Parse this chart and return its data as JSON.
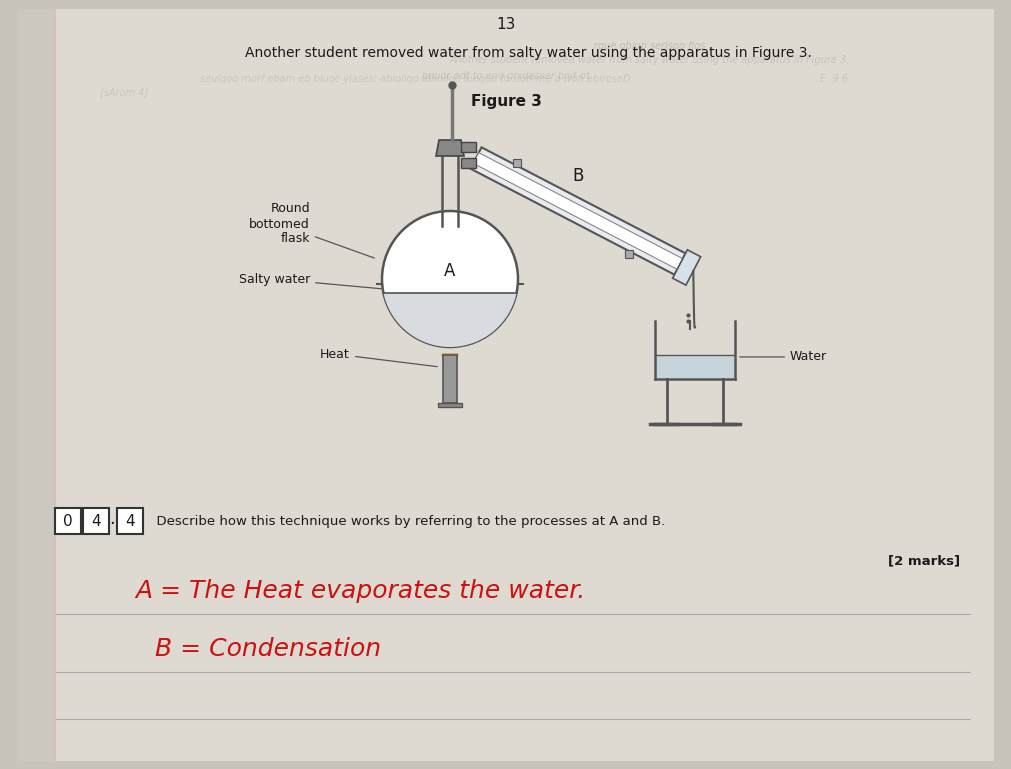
{
  "bg_color": "#c8c4bc",
  "page_color": "#dedad2",
  "page_number": "13",
  "intro_text": "Another student removed water from salty water using the apparatus in Figure 3.",
  "figure_title": "Figure 3",
  "question_text": "Describe how this technique works by referring to the processes at ⁠A⁠ and ⁠B⁠.",
  "marks_text": "[2 marks]",
  "answer_line1": "A = The Heat evaporates the water.",
  "answer_line2": "B = Condensation",
  "lbl_flask": "Round\nbottomed\nflask",
  "lbl_salty": "Salty water",
  "lbl_heat": "Heat",
  "lbl_A": "A",
  "lbl_B": "B",
  "lbl_water": "Water",
  "answer_color": "#cc1111",
  "text_color": "#1a1a1a",
  "faint_color": "#999990",
  "line_color": "#555555"
}
